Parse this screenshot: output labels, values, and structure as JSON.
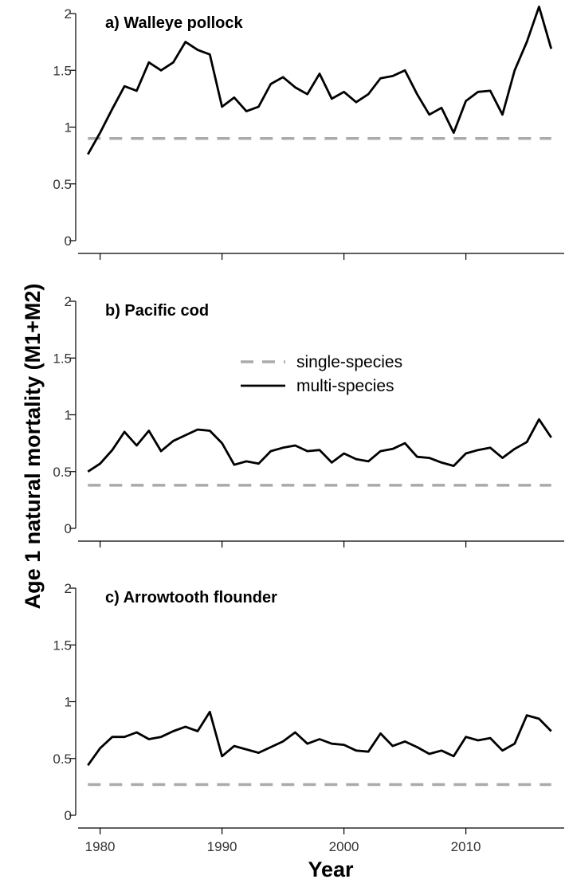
{
  "chart_data": {
    "type": "line",
    "ylabel": "Age 1 natural mortality (M1+M2)",
    "xlabel": "Year",
    "xlim": [
      1978,
      2018
    ],
    "ylim": [
      0,
      2
    ],
    "x_ticks": [
      1980,
      1990,
      2000,
      2010
    ],
    "y_ticks": [
      "0",
      "0.5",
      "1",
      "1.5",
      "2"
    ],
    "legend": {
      "placement": "upper-right of middle panel",
      "entries": [
        {
          "label": "single-species",
          "style": "dashed",
          "color": "#aaaaaa"
        },
        {
          "label": "multi-species",
          "style": "solid",
          "color": "#000000"
        }
      ]
    },
    "years": [
      1979,
      1980,
      1981,
      1982,
      1983,
      1984,
      1985,
      1986,
      1987,
      1988,
      1989,
      1990,
      1991,
      1992,
      1993,
      1994,
      1995,
      1996,
      1997,
      1998,
      1999,
      2000,
      2001,
      2002,
      2003,
      2004,
      2005,
      2006,
      2007,
      2008,
      2009,
      2010,
      2011,
      2012,
      2013,
      2014,
      2015,
      2016,
      2017
    ],
    "panels": [
      {
        "title": "a) Walleye pollock",
        "single_species": 0.9,
        "multi_species": [
          0.76,
          0.95,
          1.16,
          1.36,
          1.32,
          1.57,
          1.5,
          1.57,
          1.75,
          1.68,
          1.64,
          1.18,
          1.26,
          1.14,
          1.18,
          1.38,
          1.44,
          1.35,
          1.29,
          1.47,
          1.25,
          1.31,
          1.22,
          1.29,
          1.43,
          1.45,
          1.5,
          1.29,
          1.11,
          1.17,
          0.95,
          1.23,
          1.31,
          1.32,
          1.11,
          1.5,
          1.75,
          2.06,
          1.69
        ]
      },
      {
        "title": "b) Pacific cod",
        "single_species": 0.38,
        "multi_species": [
          0.5,
          0.57,
          0.69,
          0.85,
          0.73,
          0.86,
          0.68,
          0.77,
          0.82,
          0.87,
          0.86,
          0.75,
          0.56,
          0.59,
          0.57,
          0.68,
          0.71,
          0.73,
          0.68,
          0.69,
          0.58,
          0.66,
          0.61,
          0.59,
          0.68,
          0.7,
          0.75,
          0.63,
          0.62,
          0.58,
          0.55,
          0.66,
          0.69,
          0.71,
          0.62,
          0.7,
          0.76,
          0.96,
          0.8
        ]
      },
      {
        "title": "c) Arrowtooth flounder",
        "single_species": 0.27,
        "multi_species": [
          0.44,
          0.59,
          0.69,
          0.69,
          0.73,
          0.67,
          0.69,
          0.74,
          0.78,
          0.74,
          0.91,
          0.52,
          0.61,
          0.58,
          0.55,
          0.6,
          0.65,
          0.73,
          0.63,
          0.67,
          0.63,
          0.62,
          0.57,
          0.56,
          0.72,
          0.61,
          0.65,
          0.6,
          0.54,
          0.57,
          0.52,
          0.69,
          0.66,
          0.68,
          0.57,
          0.63,
          0.88,
          0.85,
          0.74
        ]
      }
    ]
  }
}
